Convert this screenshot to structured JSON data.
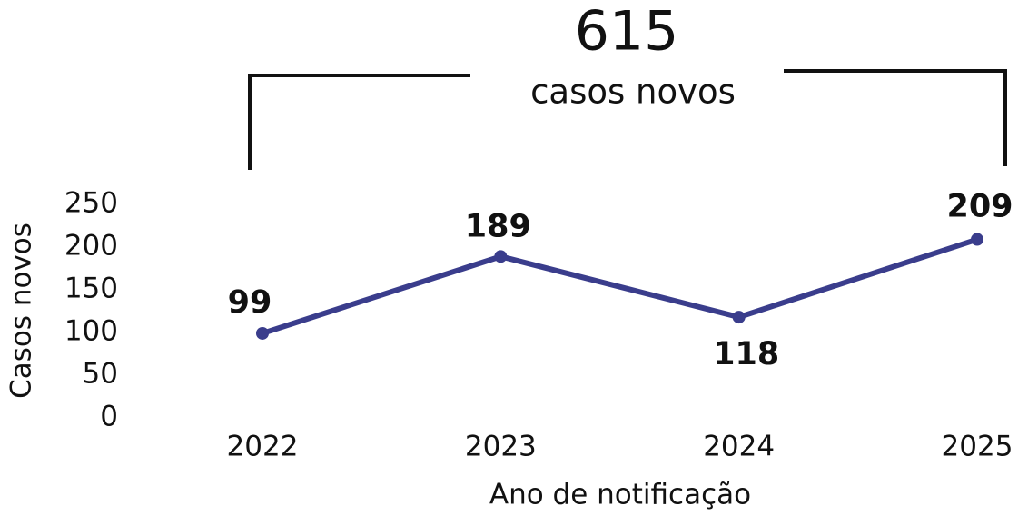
{
  "chart_data": {
    "type": "line",
    "annotation": {
      "total": "615",
      "label": "casos novos"
    },
    "x_label": "Ano de notificação",
    "y_label": "Casos novos",
    "categories": [
      "2022",
      "2023",
      "2024",
      "2025"
    ],
    "series": [
      {
        "name": "Casos novos",
        "color": "#3a3d8c",
        "values": [
          99,
          189,
          118,
          209
        ]
      }
    ],
    "ylim": [
      0,
      250
    ],
    "yticks": [
      0,
      50,
      100,
      150,
      200,
      250
    ]
  }
}
